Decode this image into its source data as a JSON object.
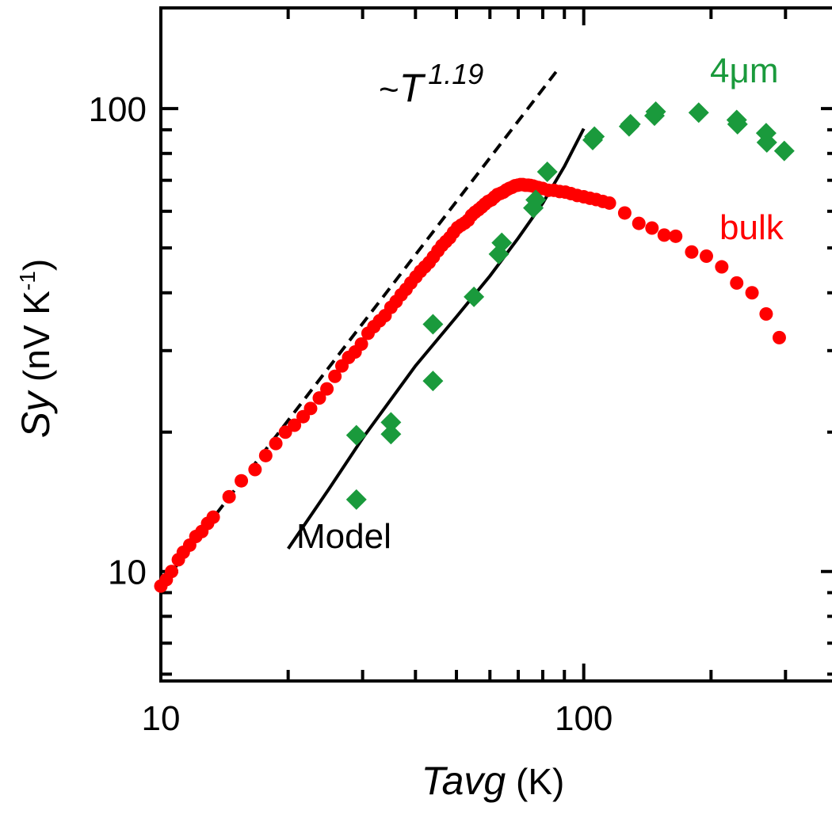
{
  "chart_data": {
    "type": "scatter",
    "x_scale": "log",
    "y_scale": "log",
    "xlim": [
      10,
      400
    ],
    "ylim": [
      5.8,
      165
    ],
    "grid": false,
    "x_ticks": [
      10,
      100
    ],
    "x_tick_labels": [
      "10",
      "100"
    ],
    "y_ticks": [
      10,
      100
    ],
    "y_tick_labels": [
      "10",
      "100"
    ],
    "xlabel": {
      "italic": "Tavg",
      "rest": " (K)"
    },
    "ylabel": {
      "italic": "Sy",
      "rest": " (nV K",
      "sup": "-1",
      "end": ")"
    },
    "annotations": {
      "power_law": {
        "prefix": "~",
        "italic": "T",
        "sup": "1.19"
      },
      "model": "Model",
      "bulk": "bulk",
      "film": "4μm"
    },
    "colors": {
      "bulk": "#ff0000",
      "film": "#1a9a3c",
      "lines": "#000000"
    },
    "series": [
      {
        "name": "bulk",
        "marker": "circle",
        "color": "#ff0000",
        "x": [
          10.0,
          10.3,
          10.6,
          11.0,
          11.3,
          11.7,
          12.1,
          12.5,
          12.9,
          13.3,
          14.5,
          15.5,
          16.7,
          17.7,
          18.7,
          19.7,
          20.7,
          21.7,
          22.6,
          23.7,
          24.7,
          25.8,
          26.8,
          27.8,
          28.8,
          29.8,
          30.9,
          31.9,
          32.9,
          33.9,
          35.0,
          36.0,
          37.0,
          38.0,
          39.0,
          40.1,
          41.1,
          42.1,
          43.1,
          44.1,
          45.2,
          46.2,
          47.2,
          48.2,
          49.2,
          50.3,
          51.3,
          52.3,
          53.3,
          54.3,
          55.3,
          56.4,
          57.4,
          58.4,
          59.4,
          60.5,
          61.5,
          62.5,
          63.6,
          64.6,
          65.6,
          66.6,
          67.7,
          68.7,
          69.8,
          70.8,
          71.8,
          72.8,
          73.9,
          74.9,
          76.0,
          77.0,
          78.2,
          80.0,
          82.5,
          85.0,
          87.7,
          90.5,
          93.3,
          96.5,
          100.0,
          103.5,
          107.0,
          111.0,
          115.0,
          125.0,
          135.0,
          145.0,
          155.0,
          165.0,
          180.0,
          195.0,
          212.0,
          230.0,
          250.0,
          270.0,
          290.0
        ],
        "y": [
          9.3,
          9.6,
          10.0,
          10.6,
          11.0,
          11.4,
          11.9,
          12.2,
          12.7,
          13.1,
          14.5,
          15.7,
          16.6,
          17.8,
          18.9,
          20.0,
          20.7,
          21.6,
          22.5,
          23.7,
          24.8,
          26.4,
          27.8,
          29.0,
          29.8,
          31.0,
          32.7,
          33.8,
          34.8,
          35.7,
          37.2,
          38.3,
          39.6,
          40.7,
          42.0,
          43.3,
          44.5,
          45.5,
          46.5,
          47.8,
          49.3,
          50.6,
          51.6,
          52.6,
          54.0,
          55.3,
          56.0,
          56.6,
          57.4,
          58.8,
          59.7,
          60.5,
          61.3,
          62.2,
          63.0,
          63.5,
          64.4,
          65.2,
          65.6,
          66.0,
          66.7,
          67.2,
          67.6,
          68.1,
          68.3,
          68.5,
          68.5,
          68.3,
          68.3,
          68.2,
          68.0,
          67.7,
          67.5,
          67.2,
          66.6,
          66.6,
          66.2,
          66.0,
          65.5,
          64.9,
          64.5,
          64.0,
          63.6,
          63.0,
          62.5,
          59.5,
          56.5,
          55.2,
          53.3,
          53.0,
          49.0,
          48.0,
          45.5,
          42.0,
          40.0,
          36.0,
          32.0
        ]
      },
      {
        "name": "4μm",
        "marker": "diamond",
        "color": "#1a9a3c",
        "x": [
          29,
          29,
          35,
          35,
          44,
          44,
          55,
          63,
          64,
          76,
          77,
          82,
          105,
          106,
          128,
          129,
          147,
          148,
          187,
          230,
          231,
          270,
          271,
          298
        ],
        "y": [
          14.3,
          19.7,
          19.8,
          21.0,
          25.8,
          34.2,
          39.2,
          48.5,
          51.3,
          61.0,
          63.5,
          73.0,
          85.5,
          87.0,
          91.5,
          92.5,
          96.5,
          98.5,
          98.0,
          94.5,
          92.5,
          88.5,
          84.5,
          81.0
        ]
      },
      {
        "name": "~T^1.19",
        "style": "dashed",
        "color": "#000000",
        "x": [
          10,
          86
        ],
        "y": [
          9.3,
          120
        ]
      },
      {
        "name": "Model",
        "style": "solid",
        "color": "#000000",
        "x": [
          20,
          25,
          30,
          40,
          50,
          60,
          70,
          80,
          90,
          100
        ],
        "y": [
          11.2,
          15.1,
          19.4,
          27.8,
          35.5,
          43.5,
          52.5,
          62.5,
          75.0,
          90.5
        ]
      }
    ]
  }
}
